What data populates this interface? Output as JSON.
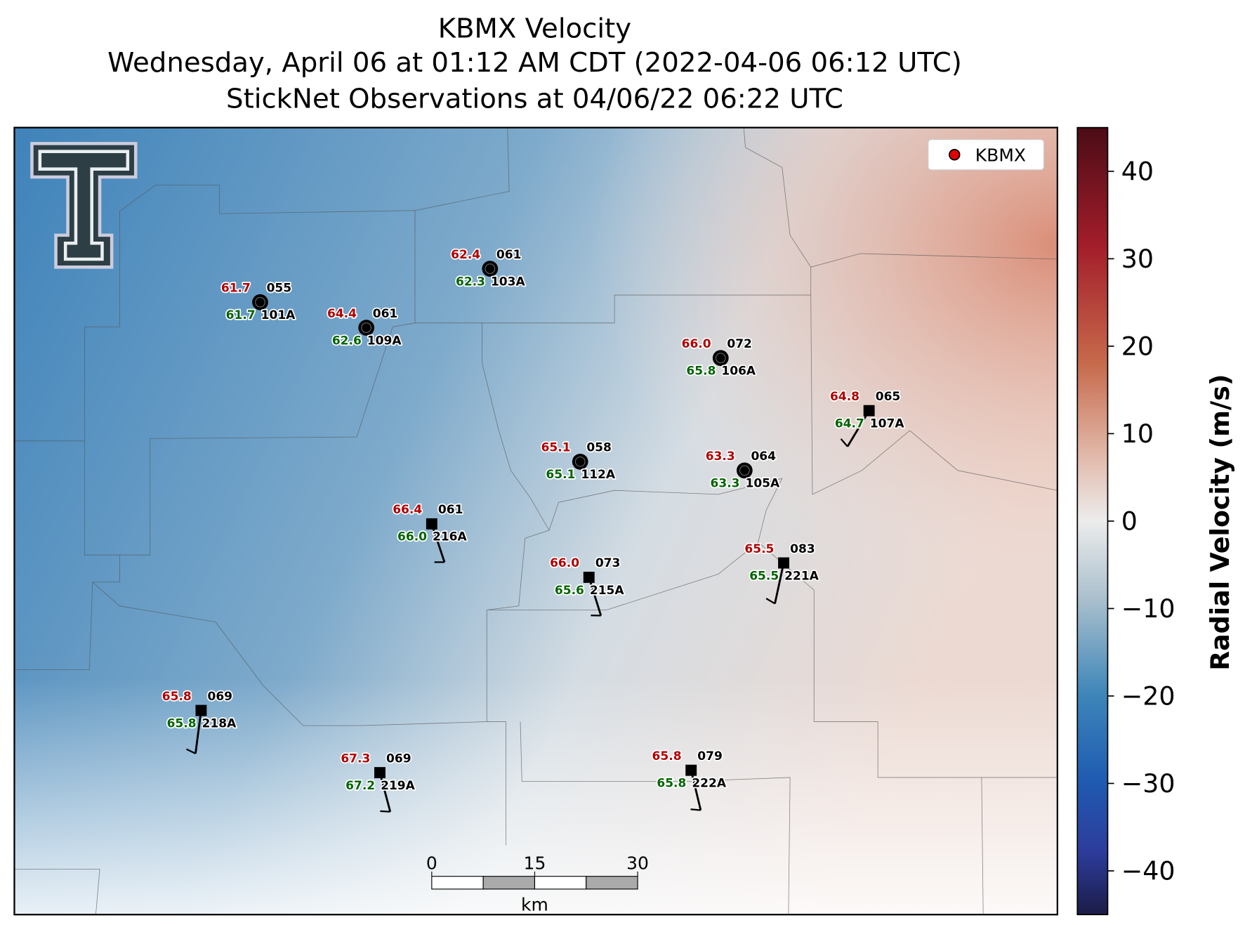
{
  "title": [
    "KBMX Velocity",
    "Wednesday, April 06 at 01:12 AM CDT (2022-04-06 06:12 UTC)",
    "StickNet Observations at 04/06/22 06:22 UTC"
  ],
  "legend": {
    "label": "KBMX",
    "color": "#e00000"
  },
  "colorbar": {
    "label": "Radial Velocity (m/s)",
    "lim": [
      -45,
      45
    ],
    "ticks": [
      {
        "value": -40,
        "label": "−40"
      },
      {
        "value": -30,
        "label": "−30"
      },
      {
        "value": -20,
        "label": "−20"
      },
      {
        "value": -10,
        "label": "−10"
      },
      0,
      10,
      20,
      30,
      40
    ]
  },
  "scale_bar": {
    "ticks": [
      0,
      15,
      30
    ],
    "unit": "km"
  },
  "stations": [
    {
      "id": "101A",
      "temperature": "61.7",
      "dewpoint": "61.7",
      "pressure": "055"
    },
    {
      "id": "109A",
      "temperature": "64.4",
      "dewpoint": "62.6",
      "pressure": "061"
    },
    {
      "id": "103A",
      "temperature": "62.4",
      "dewpoint": "62.3",
      "pressure": "061"
    },
    {
      "id": "106A",
      "temperature": "66.0",
      "dewpoint": "65.8",
      "pressure": "072"
    },
    {
      "id": "107A",
      "temperature": "64.8",
      "dewpoint": "64.7",
      "pressure": "065"
    },
    {
      "id": "112A",
      "temperature": "65.1",
      "dewpoint": "65.1",
      "pressure": "058"
    },
    {
      "id": "105A",
      "temperature": "63.3",
      "dewpoint": "63.3",
      "pressure": "064"
    },
    {
      "id": "216A",
      "temperature": "66.4",
      "dewpoint": "66.0",
      "pressure": "061"
    },
    {
      "id": "215A",
      "temperature": "66.0",
      "dewpoint": "65.6",
      "pressure": "073"
    },
    {
      "id": "221A",
      "temperature": "65.5",
      "dewpoint": "65.5",
      "pressure": "083"
    },
    {
      "id": "218A",
      "temperature": "65.8",
      "dewpoint": "65.8",
      "pressure": "069"
    },
    {
      "id": "219A",
      "temperature": "67.3",
      "dewpoint": "67.2",
      "pressure": "069"
    },
    {
      "id": "222A",
      "temperature": "65.8",
      "dewpoint": "65.8",
      "pressure": "079"
    }
  ]
}
